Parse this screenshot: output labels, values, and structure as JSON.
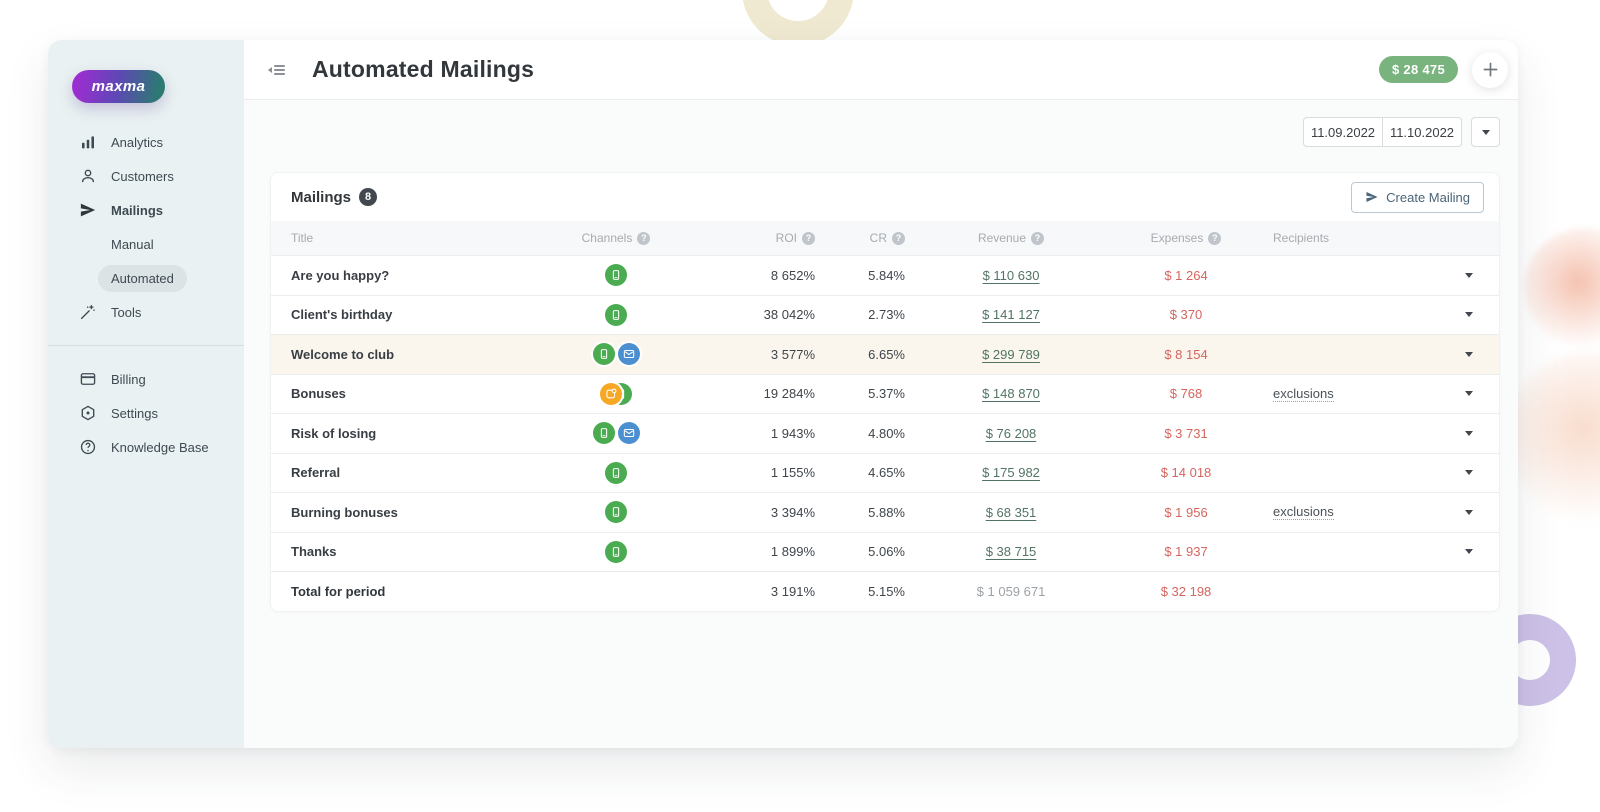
{
  "header": {
    "title": "Automated Mailings",
    "balance": "$ 28 475"
  },
  "sidebar": {
    "logo": "maxma",
    "items": [
      {
        "label": "Analytics",
        "icon": "bar-chart"
      },
      {
        "label": "Customers",
        "icon": "person"
      },
      {
        "label": "Mailings",
        "icon": "paper-plane",
        "active": true
      },
      {
        "label": "Manual",
        "sub": true
      },
      {
        "label": "Automated",
        "sub": true,
        "selected": true
      },
      {
        "label": "Tools",
        "icon": "magic-wand"
      }
    ],
    "items_bottom": [
      {
        "label": "Billing",
        "icon": "credit-card"
      },
      {
        "label": "Settings",
        "icon": "gear"
      },
      {
        "label": "Knowledge Base",
        "icon": "question-circle"
      }
    ]
  },
  "filters": {
    "date_from": "11.09.2022",
    "date_to": "11.10.2022"
  },
  "mailings": {
    "title": "Mailings",
    "count": "8",
    "create_button": "Create Mailing"
  },
  "table": {
    "headers": [
      "Title",
      "Channels",
      "ROI",
      "CR",
      "Revenue",
      "Expenses",
      "Recipients"
    ],
    "rows": [
      {
        "title": "Are you happy?",
        "channels": [
          "sms"
        ],
        "roi": "8 652%",
        "cr": "5.84%",
        "revenue": "$ 110 630",
        "expenses": "$ 1 264",
        "recipients": ""
      },
      {
        "title": "Client's birthday",
        "channels": [
          "sms"
        ],
        "roi": "38 042%",
        "cr": "2.73%",
        "revenue": "$ 141 127",
        "expenses": "$ 370",
        "recipients": ""
      },
      {
        "title": "Welcome to club",
        "channels": [
          "sms",
          "email"
        ],
        "roi": "3 577%",
        "cr": "6.65%",
        "revenue": "$ 299 789",
        "expenses": "$ 8 154",
        "recipients": "",
        "highlighted": true
      },
      {
        "title": "Bonuses",
        "channels": [
          "push",
          "sms"
        ],
        "roi": "19 284%",
        "cr": "5.37%",
        "revenue": "$ 148 870",
        "expenses": "$ 768",
        "recipients": "exclusions",
        "overlap": true
      },
      {
        "title": "Risk of losing",
        "channels": [
          "sms",
          "email"
        ],
        "roi": "1 943%",
        "cr": "4.80%",
        "revenue": "$ 76 208",
        "expenses": "$ 3 731",
        "recipients": ""
      },
      {
        "title": "Referral",
        "channels": [
          "sms"
        ],
        "roi": "1 155%",
        "cr": "4.65%",
        "revenue": "$ 175 982",
        "expenses": "$ 14 018",
        "recipients": ""
      },
      {
        "title": "Burning bonuses",
        "channels": [
          "sms"
        ],
        "roi": "3 394%",
        "cr": "5.88%",
        "revenue": "$ 68 351",
        "expenses": "$ 1 956",
        "recipients": "exclusions"
      },
      {
        "title": "Thanks",
        "channels": [
          "sms"
        ],
        "roi": "1 899%",
        "cr": "5.06%",
        "revenue": "$ 38 715",
        "expenses": "$ 1 937",
        "recipients": ""
      }
    ],
    "total": {
      "label": "Total for period",
      "roi": "3 191%",
      "cr": "5.15%",
      "revenue": "$ 1 059 671",
      "expenses": "$ 32 198"
    }
  },
  "colors": {
    "accent_green": "#79b47e",
    "channel_sms": "#4aab51",
    "channel_email": "#4b8fd0",
    "channel_push": "#f6a723",
    "revenue_link": "#527463",
    "expense_red": "#d5655e",
    "sidebar_bg": "#e9f1f2",
    "highlight_row": "#faf6ee"
  }
}
